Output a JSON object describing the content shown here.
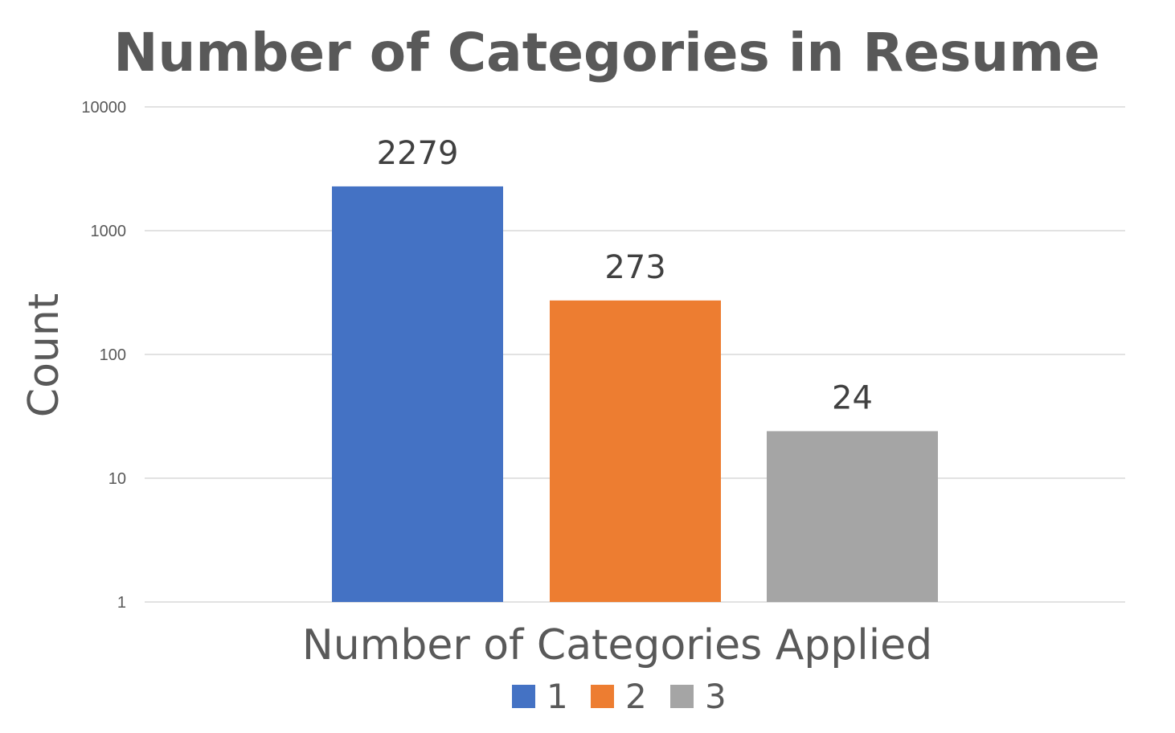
{
  "chart_data": {
    "type": "bar",
    "title": "Number of Categories in Resume",
    "xlabel": "Number of Categories Applied",
    "ylabel": "Count",
    "yscale": "log",
    "ylim": [
      1,
      10000
    ],
    "yticks": [
      1,
      10,
      100,
      1000,
      10000
    ],
    "ytick_labels": [
      "1",
      "10",
      "100",
      "1000",
      "10000"
    ],
    "grid": true,
    "legend_position": "bottom",
    "series": [
      {
        "name": "1",
        "value": 2279,
        "color": "#4472c4"
      },
      {
        "name": "2",
        "value": 273,
        "color": "#ed7d31"
      },
      {
        "name": "3",
        "value": 24,
        "color": "#a5a5a5"
      }
    ]
  }
}
